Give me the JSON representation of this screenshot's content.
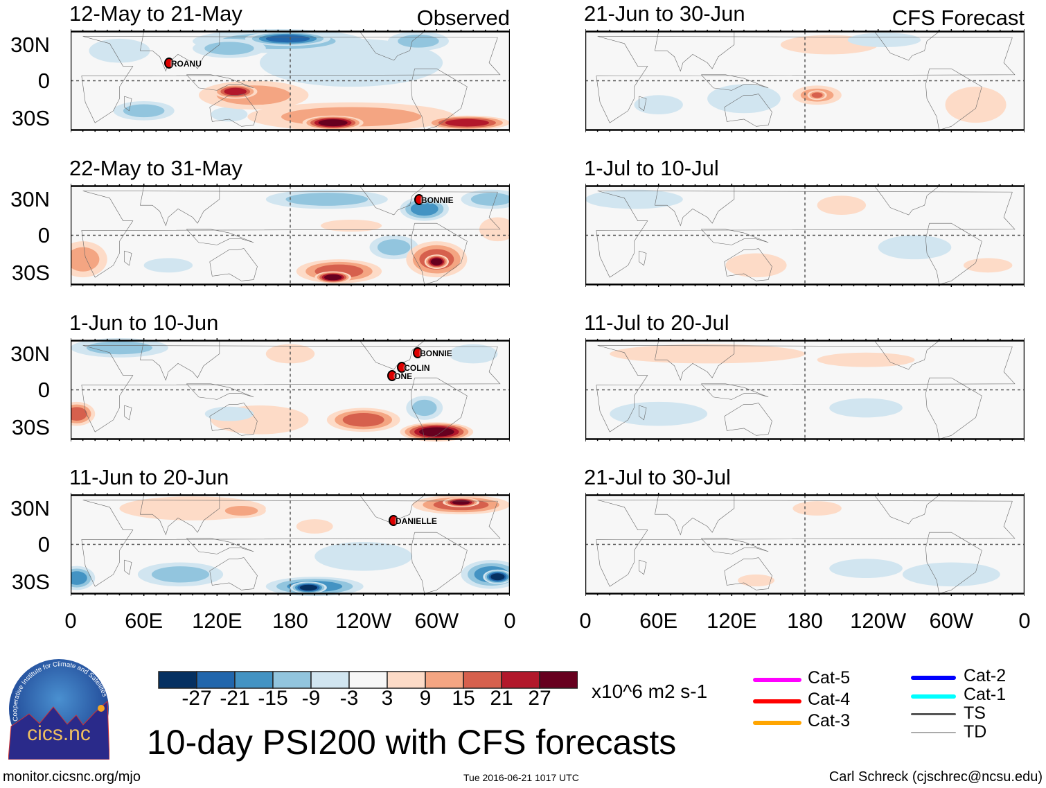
{
  "colors": [
    "#053061",
    "#2166ac",
    "#4393c3",
    "#92c5de",
    "#d1e5f0",
    "#f7f7f7",
    "#fddbc7",
    "#f4a582",
    "#d6604d",
    "#b2182b",
    "#67001f"
  ],
  "lat_labels": [
    "30N",
    "0",
    "30S"
  ],
  "lon_labels": [
    "0",
    "60E",
    "120E",
    "180",
    "120W",
    "60W",
    "0"
  ],
  "observed_label": "Observed",
  "forecast_label": "CFS Forecast",
  "panels": [
    {
      "title": "12-May to 21-May",
      "storms": [
        {
          "name": "ROANU",
          "lon": 80,
          "lat": 15
        }
      ],
      "anomalies": [
        [
          170,
          33,
          70,
          10,
          -2
        ],
        [
          178,
          35,
          35,
          6,
          -4
        ],
        [
          130,
          27,
          30,
          8,
          -2
        ],
        [
          230,
          15,
          75,
          20,
          -1
        ],
        [
          285,
          33,
          25,
          8,
          -2
        ],
        [
          40,
          25,
          25,
          10,
          -1
        ],
        [
          150,
          -12,
          45,
          12,
          2
        ],
        [
          135,
          -9,
          18,
          6,
          4
        ],
        [
          230,
          -30,
          85,
          12,
          2
        ],
        [
          215,
          -35,
          25,
          6,
          5
        ],
        [
          325,
          -35,
          35,
          6,
          4
        ],
        [
          60,
          -25,
          25,
          8,
          -2
        ],
        [
          130,
          -28,
          15,
          6,
          -1
        ]
      ]
    },
    {
      "title": "22-May to 31-May",
      "storms": [
        {
          "name": "BONNIE",
          "lon": 285,
          "lat": 30
        }
      ],
      "anomalies": [
        [
          210,
          30,
          50,
          8,
          -2
        ],
        [
          290,
          22,
          20,
          10,
          -3
        ],
        [
          345,
          30,
          25,
          8,
          -2
        ],
        [
          230,
          8,
          25,
          5,
          1
        ],
        [
          10,
          -20,
          20,
          15,
          2
        ],
        [
          265,
          -10,
          20,
          10,
          -2
        ],
        [
          220,
          -30,
          35,
          10,
          3
        ],
        [
          215,
          -35,
          15,
          5,
          5
        ],
        [
          300,
          -20,
          25,
          15,
          3
        ],
        [
          300,
          -22,
          10,
          6,
          5
        ],
        [
          80,
          -25,
          20,
          6,
          -1
        ],
        [
          350,
          5,
          15,
          10,
          1
        ]
      ]
    },
    {
      "title": "1-Jun to 10-Jun",
      "storms": [
        {
          "name": "BONNIE",
          "lon": 284,
          "lat": 31
        },
        {
          "name": "COLIN",
          "lon": 271,
          "lat": 19
        },
        {
          "name": "ONE",
          "lon": 263,
          "lat": 12
        }
      ],
      "anomalies": [
        [
          40,
          35,
          40,
          8,
          -2
        ],
        [
          155,
          -25,
          40,
          12,
          1
        ],
        [
          240,
          -25,
          30,
          10,
          3
        ],
        [
          300,
          -35,
          30,
          8,
          5
        ],
        [
          290,
          -15,
          15,
          10,
          -2
        ],
        [
          5,
          -20,
          15,
          10,
          3
        ],
        [
          180,
          30,
          20,
          8,
          1
        ],
        [
          130,
          -20,
          20,
          6,
          -1
        ],
        [
          330,
          30,
          20,
          8,
          -1
        ]
      ]
    },
    {
      "title": "11-Jun to 20-Jun",
      "storms": [
        {
          "name": "DANIELLE",
          "lon": 264,
          "lat": 20
        }
      ],
      "anomalies": [
        [
          100,
          30,
          60,
          10,
          1
        ],
        [
          140,
          28,
          20,
          6,
          2
        ],
        [
          320,
          33,
          40,
          8,
          3
        ],
        [
          320,
          35,
          15,
          4,
          5
        ],
        [
          200,
          -35,
          40,
          8,
          -3
        ],
        [
          195,
          -36,
          15,
          5,
          -5
        ],
        [
          90,
          -25,
          35,
          10,
          -2
        ],
        [
          345,
          -25,
          25,
          12,
          -3
        ],
        [
          350,
          -27,
          12,
          6,
          -5
        ],
        [
          5,
          -28,
          15,
          10,
          -3
        ],
        [
          200,
          15,
          15,
          6,
          1
        ],
        [
          240,
          -10,
          40,
          12,
          -1
        ]
      ]
    },
    {
      "title": "21-Jun to 30-Jun",
      "storms": [],
      "anomalies": [
        [
          190,
          -12,
          20,
          8,
          2
        ],
        [
          190,
          -12,
          8,
          4,
          3
        ],
        [
          130,
          -15,
          30,
          12,
          -1
        ],
        [
          320,
          -20,
          25,
          15,
          1
        ],
        [
          200,
          30,
          40,
          8,
          1
        ],
        [
          245,
          34,
          30,
          6,
          -1
        ],
        [
          60,
          -20,
          20,
          8,
          -1
        ]
      ]
    },
    {
      "title": "1-Jul to 10-Jul",
      "storms": [],
      "anomalies": [
        [
          210,
          25,
          20,
          8,
          1
        ],
        [
          270,
          -10,
          30,
          10,
          -1
        ],
        [
          140,
          -25,
          25,
          10,
          1
        ],
        [
          40,
          30,
          40,
          8,
          -1
        ],
        [
          330,
          -25,
          20,
          6,
          1
        ]
      ]
    },
    {
      "title": "11-Jul to 20-Jul",
      "storms": [],
      "anomalies": [
        [
          230,
          -15,
          30,
          8,
          -1
        ],
        [
          100,
          30,
          80,
          8,
          1
        ],
        [
          230,
          25,
          40,
          6,
          1
        ],
        [
          60,
          -20,
          40,
          10,
          -1
        ]
      ]
    },
    {
      "title": "21-Jul to 30-Jul",
      "storms": [],
      "anomalies": [
        [
          300,
          -25,
          40,
          10,
          -1
        ],
        [
          140,
          -30,
          15,
          5,
          1
        ],
        [
          230,
          -20,
          30,
          8,
          -1
        ],
        [
          190,
          30,
          20,
          6,
          1
        ]
      ]
    }
  ],
  "colorbar": {
    "labels": [
      "-27",
      "-21",
      "-15",
      "-9",
      "-3",
      "3",
      "9",
      "15",
      "21",
      "27"
    ],
    "units": "x10^6 m2 s-1"
  },
  "legend": [
    {
      "label": "Cat-5",
      "color": "#ff00ff"
    },
    {
      "label": "Cat-4",
      "color": "#ff0000"
    },
    {
      "label": "Cat-3",
      "color": "#ffa500"
    },
    {
      "label": "Cat-2",
      "color": "#0000ff"
    },
    {
      "label": "Cat-1",
      "color": "#00ffff"
    },
    {
      "label": "TS",
      "color": "#555555"
    },
    {
      "label": "TD",
      "color": "#aaaaaa"
    }
  ],
  "main_title": "10-day PSI200 with CFS forecasts",
  "logo": {
    "text": "cics.nc",
    "ring": "Cooperative Institute for Climate and Satellites"
  },
  "footer": {
    "url": "monitor.cicsnc.org/mjo",
    "timestamp": "Tue 2016-06-21 1017 UTC",
    "author": "Carl Schreck (cjschrec@ncsu.edu)"
  }
}
